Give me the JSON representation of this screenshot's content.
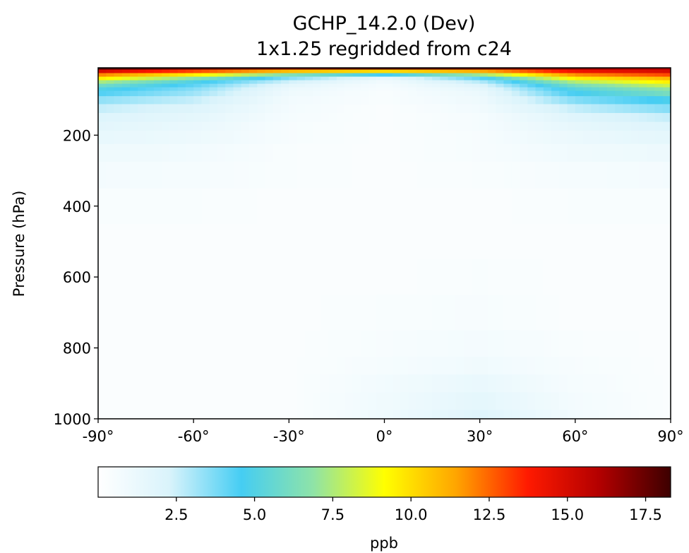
{
  "chart_data": {
    "type": "heatmap",
    "title": "GCHP_14.2.0 (Dev)",
    "subtitle": "1x1.25 regridded from c24",
    "xlabel": "",
    "ylabel": "Pressure (hPa)",
    "x_ticks": [
      "-90°",
      "-60°",
      "-30°",
      "0°",
      "30°",
      "60°",
      "90°"
    ],
    "x_tick_values": [
      -90,
      -60,
      -30,
      0,
      30,
      60,
      90
    ],
    "y_ticks": [
      "200",
      "400",
      "600",
      "800",
      "1000"
    ],
    "y_tick_values": [
      200,
      400,
      600,
      800,
      1000
    ],
    "xlim": [
      -90,
      90
    ],
    "ylim": [
      1000,
      10
    ],
    "colorbar": {
      "label": "ppb",
      "ticks": [
        "2.5",
        "5.0",
        "7.5",
        "10.0",
        "12.5",
        "15.0",
        "17.5"
      ],
      "tick_values": [
        2.5,
        5.0,
        7.5,
        10.0,
        12.5,
        15.0,
        17.5
      ],
      "range": [
        0,
        18.3
      ],
      "colormap": [
        "#ffffff",
        "#d9f3fb",
        "#45cdf3",
        "#8ee3a8",
        "#ffff00",
        "#ffa500",
        "#ff1a00",
        "#b30000",
        "#3d0000"
      ]
    },
    "latitudes": [
      -90,
      -60,
      -30,
      0,
      30,
      60,
      90
    ],
    "pressure_levels": [
      10,
      20,
      30,
      40,
      50,
      60,
      70,
      80,
      100,
      125,
      150,
      175,
      200,
      250,
      300,
      400,
      500,
      600,
      700,
      800,
      850,
      900,
      950,
      1000
    ],
    "values": [
      [
        18.0,
        17.6,
        17.3,
        17.8,
        17.5,
        16.8,
        16.2
      ],
      [
        15.0,
        13.0,
        10.8,
        10.0,
        11.2,
        14.2,
        15.0
      ],
      [
        12.0,
        9.5,
        6.5,
        4.5,
        7.2,
        11.8,
        13.0
      ],
      [
        9.6,
        6.8,
        3.6,
        1.2,
        4.2,
        9.5,
        11.0
      ],
      [
        7.5,
        5.0,
        2.4,
        0.8,
        2.8,
        7.6,
        9.6
      ],
      [
        6.0,
        4.2,
        1.6,
        0.6,
        2.0,
        6.2,
        8.2
      ],
      [
        5.0,
        3.6,
        1.2,
        0.5,
        1.5,
        5.2,
        7.0
      ],
      [
        4.4,
        3.2,
        1.0,
        0.4,
        1.2,
        4.6,
        6.2
      ],
      [
        3.4,
        2.6,
        0.8,
        0.4,
        1.0,
        3.6,
        4.8
      ],
      [
        2.6,
        2.0,
        0.7,
        0.3,
        0.8,
        2.6,
        3.6
      ],
      [
        2.0,
        1.6,
        0.6,
        0.3,
        0.6,
        1.9,
        2.6
      ],
      [
        1.7,
        1.3,
        0.5,
        0.3,
        0.6,
        1.5,
        2.0
      ],
      [
        1.4,
        1.1,
        0.5,
        0.3,
        0.5,
        1.2,
        1.6
      ],
      [
        1.0,
        0.8,
        0.4,
        0.3,
        0.5,
        0.9,
        1.1
      ],
      [
        0.7,
        0.6,
        0.4,
        0.3,
        0.4,
        0.6,
        0.7
      ],
      [
        0.4,
        0.4,
        0.3,
        0.3,
        0.3,
        0.4,
        0.4
      ],
      [
        0.3,
        0.3,
        0.3,
        0.3,
        0.3,
        0.3,
        0.3
      ],
      [
        0.3,
        0.3,
        0.3,
        0.3,
        0.4,
        0.3,
        0.3
      ],
      [
        0.3,
        0.3,
        0.3,
        0.4,
        0.5,
        0.3,
        0.3
      ],
      [
        0.3,
        0.3,
        0.3,
        0.5,
        0.7,
        0.4,
        0.3
      ],
      [
        0.3,
        0.3,
        0.3,
        0.6,
        0.9,
        0.5,
        0.3
      ],
      [
        0.3,
        0.3,
        0.3,
        0.8,
        1.3,
        0.6,
        0.3
      ],
      [
        0.3,
        0.3,
        0.3,
        0.9,
        1.6,
        0.7,
        0.3
      ],
      [
        0.3,
        0.3,
        0.3,
        1.0,
        1.9,
        0.8,
        0.3
      ]
    ]
  }
}
